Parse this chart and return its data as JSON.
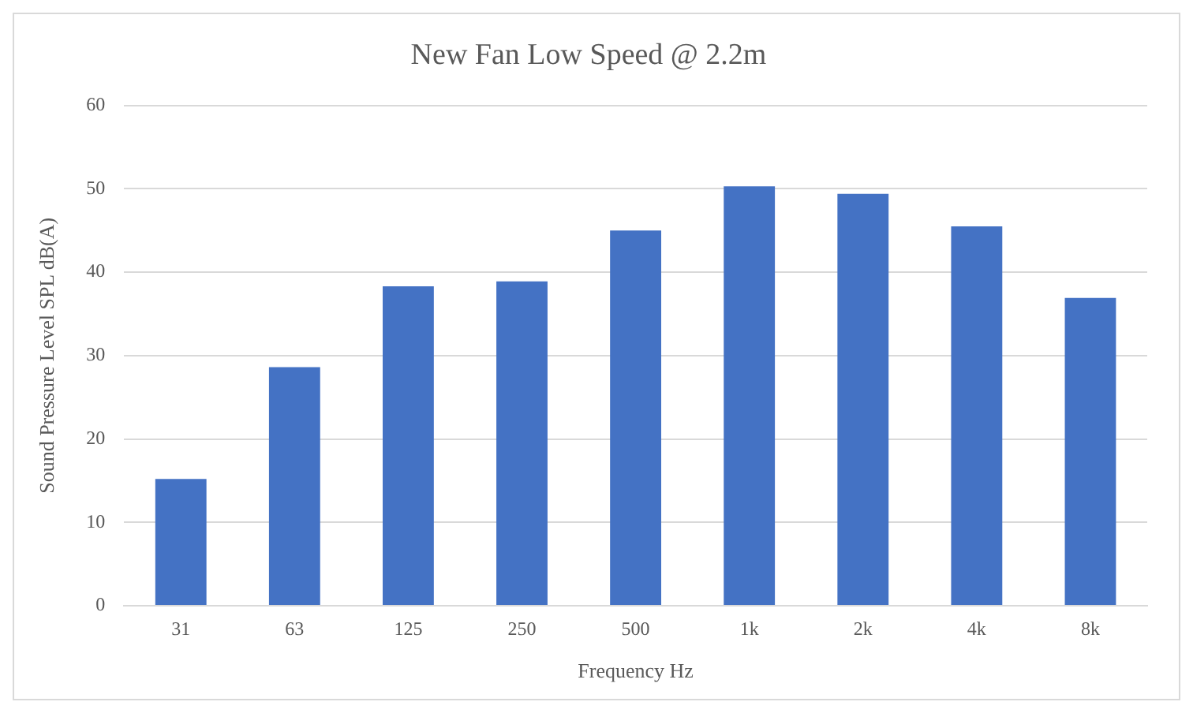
{
  "chart_data": {
    "type": "bar",
    "title": "New Fan Low Speed @ 2.2m",
    "xlabel": "Frequency Hz",
    "ylabel": "Sound Pressure Level SPL dB(A)",
    "categories": [
      "31",
      "63",
      "125",
      "250",
      "500",
      "1k",
      "2k",
      "4k",
      "8k"
    ],
    "values": [
      15.2,
      28.6,
      38.3,
      38.9,
      45.0,
      50.3,
      49.4,
      45.5,
      36.9
    ],
    "color": "#4472c4",
    "ylim": [
      0,
      60
    ],
    "yticks": [
      0,
      10,
      20,
      30,
      40,
      50,
      60
    ],
    "grid": "y",
    "legend": false
  }
}
